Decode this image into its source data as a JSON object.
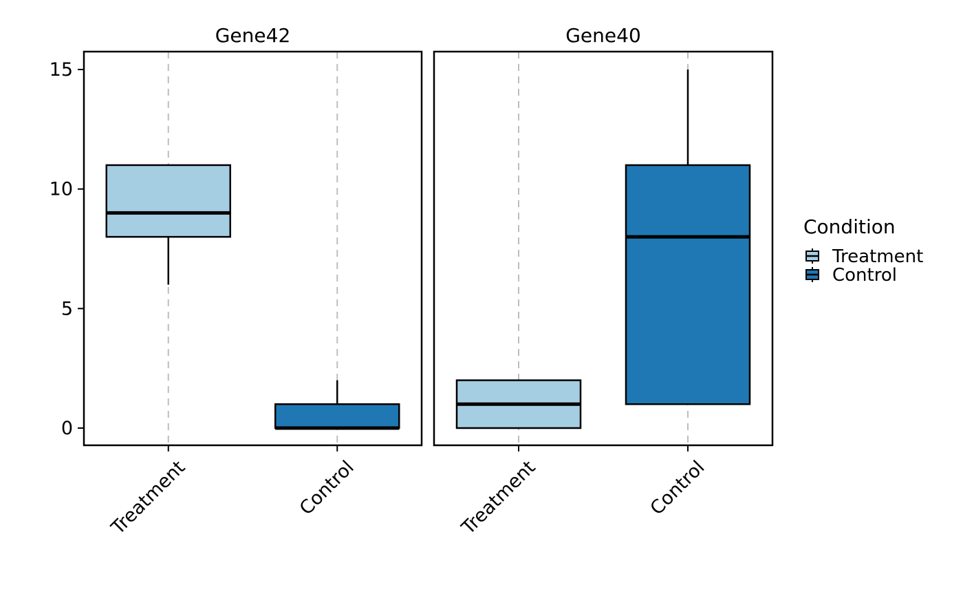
{
  "chart_data": {
    "type": "box",
    "ylim": [
      -0.7,
      15.7
    ],
    "y_ticks": [
      0,
      5,
      10,
      15
    ],
    "y_tick_labels": [
      "0",
      "5",
      "10",
      "15"
    ],
    "categories": [
      "Treatment",
      "Control"
    ],
    "grid": "vertical dashed",
    "legend": {
      "title": "Condition",
      "placement": "right",
      "entries": [
        {
          "name": "Treatment",
          "color": "#a6cee3"
        },
        {
          "name": "Control",
          "color": "#1f78b4"
        }
      ]
    },
    "panels": [
      {
        "title": "Gene42",
        "boxes": [
          {
            "category": "Treatment",
            "min": 6,
            "q1": 8,
            "median": 9,
            "q3": 11,
            "max": 11
          },
          {
            "category": "Control",
            "min": 0,
            "q1": 0,
            "median": 0,
            "q3": 1,
            "max": 2
          }
        ]
      },
      {
        "title": "Gene40",
        "boxes": [
          {
            "category": "Treatment",
            "min": 0,
            "q1": 0,
            "median": 1,
            "q3": 2,
            "max": 2
          },
          {
            "category": "Control",
            "min": 1,
            "q1": 1,
            "median": 8,
            "q3": 11,
            "max": 15
          }
        ]
      }
    ]
  }
}
